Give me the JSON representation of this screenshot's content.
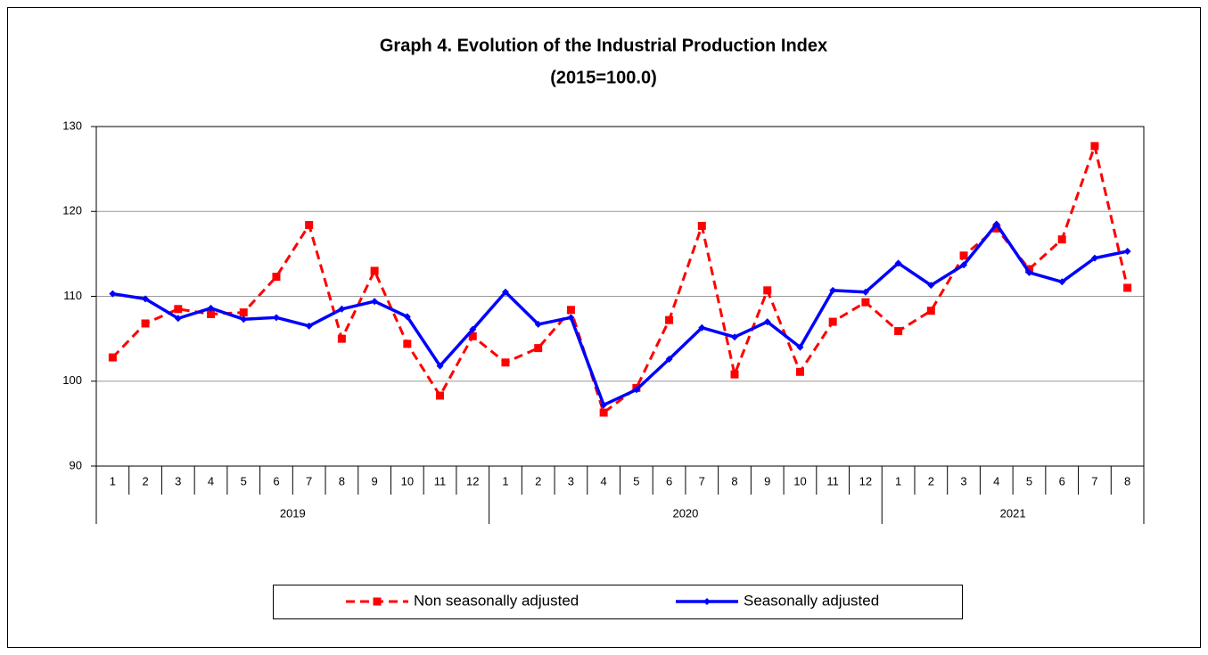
{
  "chart_data": {
    "type": "line",
    "title": "Graph 4. Evolution of the Industrial Production Index",
    "subtitle": "(2015=100.0)",
    "categories": [
      "1",
      "2",
      "3",
      "4",
      "5",
      "6",
      "7",
      "8",
      "9",
      "10",
      "11",
      "12",
      "1",
      "2",
      "3",
      "4",
      "5",
      "6",
      "7",
      "8",
      "9",
      "10",
      "11",
      "12",
      "1",
      "2",
      "3",
      "4",
      "5",
      "6",
      "7",
      "8"
    ],
    "year_groups": [
      {
        "label": "2019",
        "count": 12
      },
      {
        "label": "2020",
        "count": 12
      },
      {
        "label": "2021",
        "count": 8
      }
    ],
    "series": [
      {
        "name": "Non seasonally adjusted",
        "color": "#ff0000",
        "dashed": true,
        "marker": "square",
        "values": [
          102.8,
          106.8,
          108.5,
          107.9,
          108.1,
          112.3,
          118.4,
          105.0,
          113.0,
          104.4,
          98.3,
          105.3,
          102.2,
          103.9,
          108.4,
          96.3,
          99.2,
          107.2,
          118.3,
          100.8,
          110.7,
          101.1,
          107.0,
          109.3,
          105.9,
          108.3,
          114.8,
          118.0,
          113.2,
          116.7,
          127.7,
          111.0
        ]
      },
      {
        "name": "Seasonally adjusted",
        "color": "#0000ff",
        "dashed": false,
        "marker": "diamond",
        "values": [
          110.3,
          109.7,
          107.4,
          108.6,
          107.3,
          107.5,
          106.5,
          108.5,
          109.4,
          107.6,
          101.8,
          106.1,
          110.5,
          106.7,
          107.5,
          97.2,
          99.0,
          102.6,
          106.3,
          105.2,
          107.0,
          104.0,
          110.7,
          110.5,
          113.9,
          111.3,
          113.7,
          118.5,
          112.8,
          111.7,
          114.5,
          115.3
        ]
      }
    ],
    "ylim": [
      90,
      130
    ],
    "yticks": [
      90,
      100,
      110,
      120,
      130
    ],
    "grid": true,
    "legend": "bottom"
  }
}
